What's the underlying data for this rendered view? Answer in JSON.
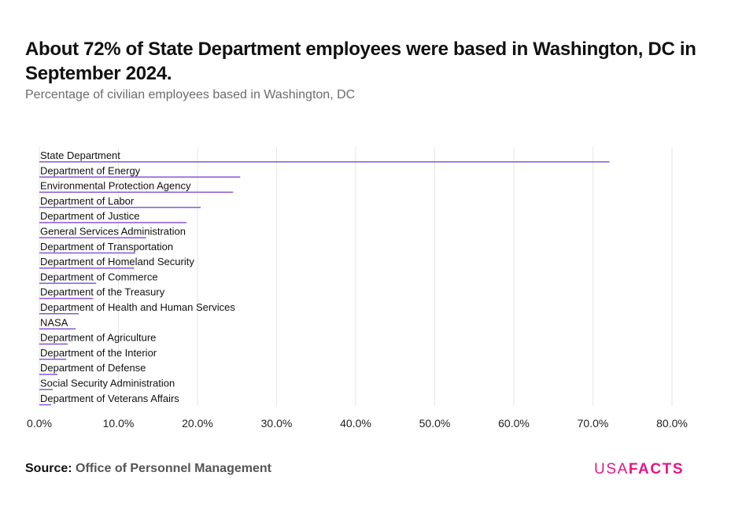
{
  "title": "About 72% of State Department employees were based in Washington, DC in September 2024.",
  "subtitle": "Percentage of civilian employees based in Washington, DC",
  "source_label": "Source:",
  "source_value": "Office of Personnel Management",
  "logo": {
    "usa": "USA",
    "facts": "FACTS"
  },
  "colors": {
    "bar": "#8c55d4",
    "grid": "#e6e6e6",
    "text": "#111111",
    "logo": "#e5168a"
  },
  "chart_data": {
    "type": "bar",
    "orientation": "horizontal",
    "categories": [
      "State Department",
      "Department of Energy",
      "Environmental Protection Agency",
      "Department of Labor",
      "Department of Justice",
      "General Services Administration",
      "Department of Transportation",
      "Department of Homeland Security",
      "Department of Commerce",
      "Department of the Treasury",
      "Department of Health and Human Services",
      "NASA",
      "Department of Agriculture",
      "Department of the Interior",
      "Department of Defense",
      "Social Security Administration",
      "Department of Veterans Affairs"
    ],
    "values": [
      72.1,
      25.4,
      24.5,
      20.4,
      18.6,
      13.5,
      12.1,
      12.0,
      7.2,
      6.8,
      5.0,
      4.6,
      3.6,
      3.4,
      2.3,
      1.7,
      1.5
    ],
    "xlim": [
      0,
      80
    ],
    "xticks": [
      "0.0%",
      "10.0%",
      "20.0%",
      "30.0%",
      "40.0%",
      "50.0%",
      "60.0%",
      "70.0%",
      "80.0%"
    ],
    "grid": true,
    "legend": "none"
  }
}
